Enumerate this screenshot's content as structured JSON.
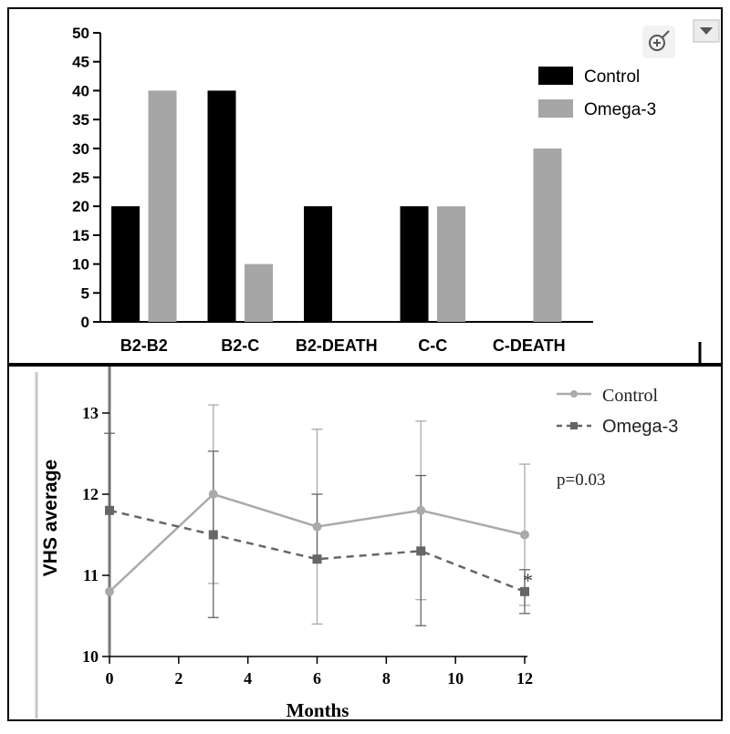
{
  "chart_data": [
    {
      "type": "bar",
      "categories": [
        "B2-B2",
        "B2-C",
        "B2-DEATH",
        "C-C",
        "C-DEATH"
      ],
      "series": [
        {
          "name": "Control",
          "values": [
            20,
            40,
            20,
            20,
            0
          ],
          "color": "#000000"
        },
        {
          "name": "Omega-3",
          "values": [
            40,
            10,
            0,
            20,
            30
          ],
          "color": "#a6a6a6"
        }
      ],
      "yticks": [
        0,
        5,
        10,
        15,
        20,
        25,
        30,
        35,
        40,
        45,
        50
      ],
      "ylim": [
        0,
        50
      ],
      "legend": "top-right",
      "grid": false,
      "toolbar_icons": [
        "zoom-icon",
        "dropdown-arrow-icon"
      ]
    },
    {
      "type": "line",
      "ylabel": "VHS average",
      "xlabel": "Months",
      "x": [
        0,
        3,
        6,
        9,
        12
      ],
      "xticks": [
        0,
        2,
        4,
        6,
        8,
        10,
        12
      ],
      "yticks": [
        10,
        11,
        12,
        13
      ],
      "xlim": [
        0,
        12
      ],
      "ylim": [
        10,
        13.5
      ],
      "series": [
        {
          "name": "Control",
          "values": [
            10.8,
            12.0,
            11.6,
            11.8,
            11.5
          ],
          "error_upper": [
            null,
            13.1,
            12.8,
            12.9,
            12.37
          ],
          "error_lower": [
            null,
            10.9,
            10.4,
            10.7,
            10.63
          ],
          "color": "#aaaaaa",
          "marker": "circle",
          "line": "solid"
        },
        {
          "name": "Omega-3",
          "values": [
            11.8,
            11.5,
            11.2,
            11.3,
            10.8
          ],
          "error_upper": [
            12.75,
            12.53,
            12.0,
            12.23,
            11.07
          ],
          "error_lower": [
            null,
            10.48,
            null,
            10.38,
            10.53
          ],
          "color": "#666666",
          "marker": "square",
          "line": "dashed"
        }
      ],
      "annotation": "p=0.03",
      "significance_marker": "*",
      "legend": "top-right",
      "grid": false
    }
  ]
}
